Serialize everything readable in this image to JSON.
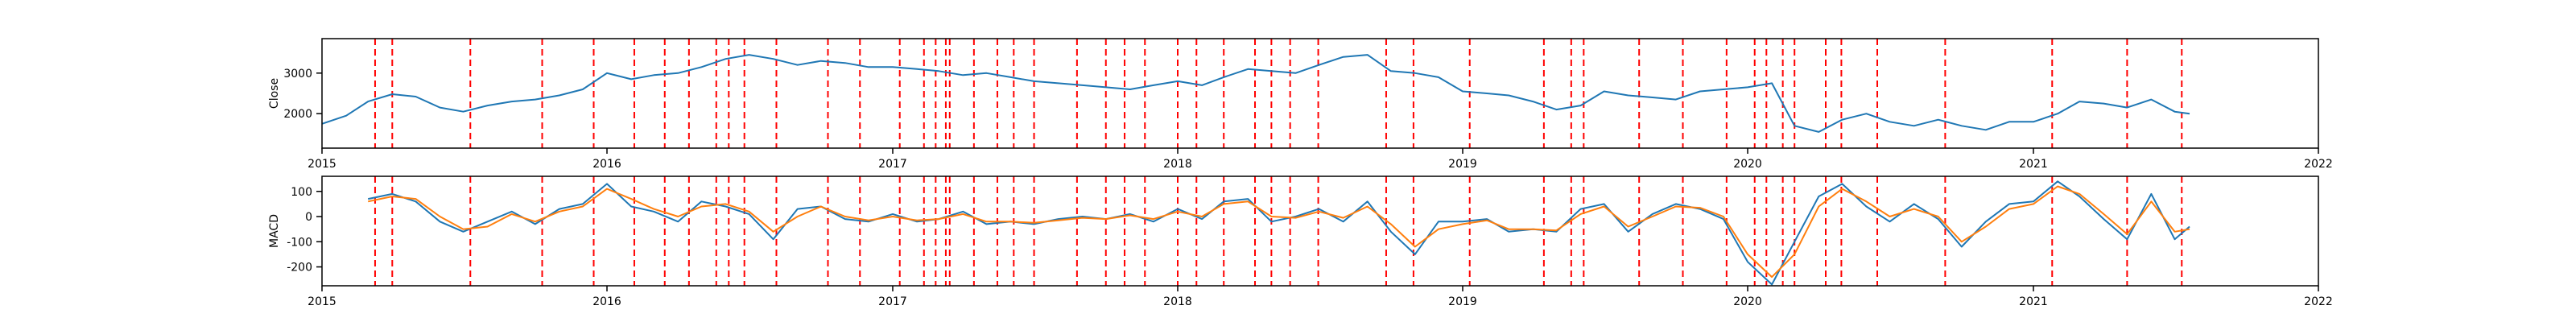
{
  "colors": {
    "close": "#1f77b4",
    "macd": "#1f77b4",
    "signal": "#ff7f0e",
    "event": "#ff0000",
    "frame": "#000000"
  },
  "chart_data": [
    {
      "type": "line",
      "ylabel": "Close",
      "xlim": [
        "2015-01-01",
        "2022-01-01"
      ],
      "ylim": [
        1150,
        3850
      ],
      "xticks": [
        "2015",
        "2016",
        "2017",
        "2018",
        "2019",
        "2020",
        "2021",
        "2022"
      ],
      "yticks": [
        2000,
        3000
      ],
      "grid": false,
      "series": [
        {
          "key": "close",
          "x": [
            "2015-01-01",
            "2015-02-01",
            "2015-03-01",
            "2015-04-01",
            "2015-05-01",
            "2015-06-01",
            "2015-07-01",
            "2015-08-01",
            "2015-09-01",
            "2015-10-01",
            "2015-11-01",
            "2015-12-01",
            "2016-01-01",
            "2016-02-01",
            "2016-03-01",
            "2016-04-01",
            "2016-05-01",
            "2016-06-01",
            "2016-07-01",
            "2016-08-01",
            "2016-09-01",
            "2016-10-01",
            "2016-11-01",
            "2016-12-01",
            "2017-01-01",
            "2017-02-01",
            "2017-03-01",
            "2017-04-01",
            "2017-05-01",
            "2017-06-01",
            "2017-07-01",
            "2017-08-01",
            "2017-09-01",
            "2017-10-01",
            "2017-11-01",
            "2017-12-01",
            "2018-01-01",
            "2018-02-01",
            "2018-03-01",
            "2018-04-01",
            "2018-05-01",
            "2018-06-01",
            "2018-07-01",
            "2018-08-01",
            "2018-09-01",
            "2018-10-01",
            "2018-11-01",
            "2018-12-01",
            "2019-01-01",
            "2019-02-01",
            "2019-03-01",
            "2019-04-01",
            "2019-05-01",
            "2019-06-01",
            "2019-07-01",
            "2019-08-01",
            "2019-09-01",
            "2019-10-01",
            "2019-11-01",
            "2019-12-01",
            "2020-01-01",
            "2020-02-01",
            "2020-03-01",
            "2020-04-01",
            "2020-05-01",
            "2020-06-01",
            "2020-07-01",
            "2020-08-01",
            "2020-09-01",
            "2020-10-01",
            "2020-11-01",
            "2020-12-01",
            "2021-01-01",
            "2021-02-01",
            "2021-03-01",
            "2021-04-01",
            "2021-05-01",
            "2021-06-01",
            "2021-07-01",
            "2021-07-20"
          ],
          "values": [
            1750,
            1950,
            2300,
            2480,
            2420,
            2150,
            2050,
            2200,
            2300,
            2350,
            2450,
            2600,
            3000,
            2850,
            2950,
            3000,
            3150,
            3350,
            3450,
            3350,
            3200,
            3300,
            3250,
            3150,
            3150,
            3100,
            3050,
            2950,
            3000,
            2900,
            2800,
            2750,
            2700,
            2650,
            2600,
            2700,
            2800,
            2700,
            2900,
            3100,
            3050,
            3000,
            3200,
            3400,
            3450,
            3050,
            3000,
            2900,
            2550,
            2500,
            2450,
            2300,
            2100,
            2200,
            2550,
            2450,
            2400,
            2350,
            2550,
            2600,
            2650,
            2750,
            1700,
            1550,
            1850,
            2000,
            1800,
            1700,
            1850,
            1700,
            1600,
            1800,
            1800,
            2000,
            2300,
            2250,
            2150,
            2350,
            2050,
            2000
          ]
        }
      ]
    },
    {
      "type": "line",
      "ylabel": "MACD",
      "xlim": [
        "2015-01-01",
        "2022-01-01"
      ],
      "ylim": [
        -275,
        160
      ],
      "xticks": [
        "2015",
        "2016",
        "2017",
        "2018",
        "2019",
        "2020",
        "2021",
        "2022"
      ],
      "yticks": [
        -200,
        -100,
        0,
        100
      ],
      "grid": false,
      "series": [
        {
          "key": "macd",
          "x": [
            "2015-03-01",
            "2015-04-01",
            "2015-05-01",
            "2015-06-01",
            "2015-07-01",
            "2015-08-01",
            "2015-09-01",
            "2015-10-01",
            "2015-11-01",
            "2015-12-01",
            "2016-01-01",
            "2016-02-01",
            "2016-03-01",
            "2016-04-01",
            "2016-05-01",
            "2016-06-01",
            "2016-07-01",
            "2016-08-01",
            "2016-09-01",
            "2016-10-01",
            "2016-11-01",
            "2016-12-01",
            "2017-01-01",
            "2017-02-01",
            "2017-03-01",
            "2017-04-01",
            "2017-05-01",
            "2017-06-01",
            "2017-07-01",
            "2017-08-01",
            "2017-09-01",
            "2017-10-01",
            "2017-11-01",
            "2017-12-01",
            "2018-01-01",
            "2018-02-01",
            "2018-03-01",
            "2018-04-01",
            "2018-05-01",
            "2018-06-01",
            "2018-07-01",
            "2018-08-01",
            "2018-09-01",
            "2018-10-01",
            "2018-11-01",
            "2018-12-01",
            "2019-01-01",
            "2019-02-01",
            "2019-03-01",
            "2019-04-01",
            "2019-05-01",
            "2019-06-01",
            "2019-07-01",
            "2019-08-01",
            "2019-09-01",
            "2019-10-01",
            "2019-11-01",
            "2019-12-01",
            "2020-01-01",
            "2020-02-01",
            "2020-03-01",
            "2020-04-01",
            "2020-05-01",
            "2020-06-01",
            "2020-07-01",
            "2020-08-01",
            "2020-09-01",
            "2020-10-01",
            "2020-11-01",
            "2020-12-01",
            "2021-01-01",
            "2021-02-01",
            "2021-03-01",
            "2021-04-01",
            "2021-05-01",
            "2021-06-01",
            "2021-07-01",
            "2021-07-20"
          ],
          "values": [
            70,
            90,
            60,
            -20,
            -60,
            -20,
            20,
            -30,
            30,
            50,
            130,
            40,
            20,
            -20,
            60,
            40,
            10,
            -90,
            30,
            40,
            -10,
            -20,
            10,
            -20,
            -10,
            20,
            -30,
            -20,
            -30,
            -10,
            0,
            -10,
            10,
            -20,
            30,
            -10,
            60,
            70,
            -20,
            0,
            30,
            -20,
            60,
            -60,
            -150,
            -20,
            -20,
            -10,
            -60,
            -50,
            -60,
            30,
            50,
            -60,
            10,
            50,
            30,
            -10,
            -180,
            -270,
            -100,
            80,
            130,
            40,
            -20,
            50,
            -10,
            -120,
            -20,
            50,
            60,
            140,
            80,
            -10,
            -90,
            90,
            -90,
            -40
          ]
        },
        {
          "key": "signal",
          "x": [
            "2015-03-01",
            "2015-04-01",
            "2015-05-01",
            "2015-06-01",
            "2015-07-01",
            "2015-08-01",
            "2015-09-01",
            "2015-10-01",
            "2015-11-01",
            "2015-12-01",
            "2016-01-01",
            "2016-02-01",
            "2016-03-01",
            "2016-04-01",
            "2016-05-01",
            "2016-06-01",
            "2016-07-01",
            "2016-08-01",
            "2016-09-01",
            "2016-10-01",
            "2016-11-01",
            "2016-12-01",
            "2017-01-01",
            "2017-02-01",
            "2017-03-01",
            "2017-04-01",
            "2017-05-01",
            "2017-06-01",
            "2017-07-01",
            "2017-08-01",
            "2017-09-01",
            "2017-10-01",
            "2017-11-01",
            "2017-12-01",
            "2018-01-01",
            "2018-02-01",
            "2018-03-01",
            "2018-04-01",
            "2018-05-01",
            "2018-06-01",
            "2018-07-01",
            "2018-08-01",
            "2018-09-01",
            "2018-10-01",
            "2018-11-01",
            "2018-12-01",
            "2019-01-01",
            "2019-02-01",
            "2019-03-01",
            "2019-04-01",
            "2019-05-01",
            "2019-06-01",
            "2019-07-01",
            "2019-08-01",
            "2019-09-01",
            "2019-10-01",
            "2019-11-01",
            "2019-12-01",
            "2020-01-01",
            "2020-02-01",
            "2020-03-01",
            "2020-04-01",
            "2020-05-01",
            "2020-06-01",
            "2020-07-01",
            "2020-08-01",
            "2020-09-01",
            "2020-10-01",
            "2020-11-01",
            "2020-12-01",
            "2021-01-01",
            "2021-02-01",
            "2021-03-01",
            "2021-04-01",
            "2021-05-01",
            "2021-06-01",
            "2021-07-01",
            "2021-07-20"
          ],
          "values": [
            60,
            80,
            70,
            0,
            -50,
            -40,
            10,
            -20,
            20,
            40,
            110,
            70,
            30,
            0,
            40,
            50,
            20,
            -60,
            0,
            40,
            0,
            -15,
            0,
            -15,
            -10,
            10,
            -20,
            -20,
            -25,
            -15,
            -5,
            -10,
            5,
            -10,
            20,
            0,
            50,
            60,
            0,
            -5,
            20,
            -5,
            40,
            -30,
            -120,
            -50,
            -30,
            -15,
            -50,
            -50,
            -55,
            10,
            40,
            -40,
            0,
            40,
            35,
            0,
            -150,
            -240,
            -150,
            40,
            110,
            60,
            0,
            30,
            0,
            -100,
            -40,
            30,
            50,
            120,
            90,
            10,
            -70,
            60,
            -60,
            -50
          ]
        }
      ]
    }
  ],
  "event_dates": [
    "2015-03-10",
    "2015-04-01",
    "2015-07-10",
    "2015-10-10",
    "2015-12-15",
    "2016-02-05",
    "2016-03-15",
    "2016-04-15",
    "2016-05-20",
    "2016-06-05",
    "2016-06-25",
    "2016-08-05",
    "2016-10-10",
    "2016-11-20",
    "2017-01-10",
    "2017-02-10",
    "2017-02-25",
    "2017-03-10",
    "2017-03-15",
    "2017-04-15",
    "2017-05-15",
    "2017-06-05",
    "2017-07-01",
    "2017-08-25",
    "2017-10-01",
    "2017-10-25",
    "2017-11-20",
    "2018-01-01",
    "2018-01-25",
    "2018-03-01",
    "2018-04-10",
    "2018-05-01",
    "2018-05-25",
    "2018-06-30",
    "2018-09-25",
    "2018-10-30",
    "2019-01-10",
    "2019-04-15",
    "2019-05-20",
    "2019-06-05",
    "2019-08-15",
    "2019-10-10",
    "2019-12-05",
    "2020-01-10",
    "2020-01-25",
    "2020-02-15",
    "2020-03-01",
    "2020-04-10",
    "2020-04-30",
    "2020-06-15",
    "2020-09-10",
    "2021-01-25",
    "2021-05-01",
    "2021-07-10"
  ]
}
